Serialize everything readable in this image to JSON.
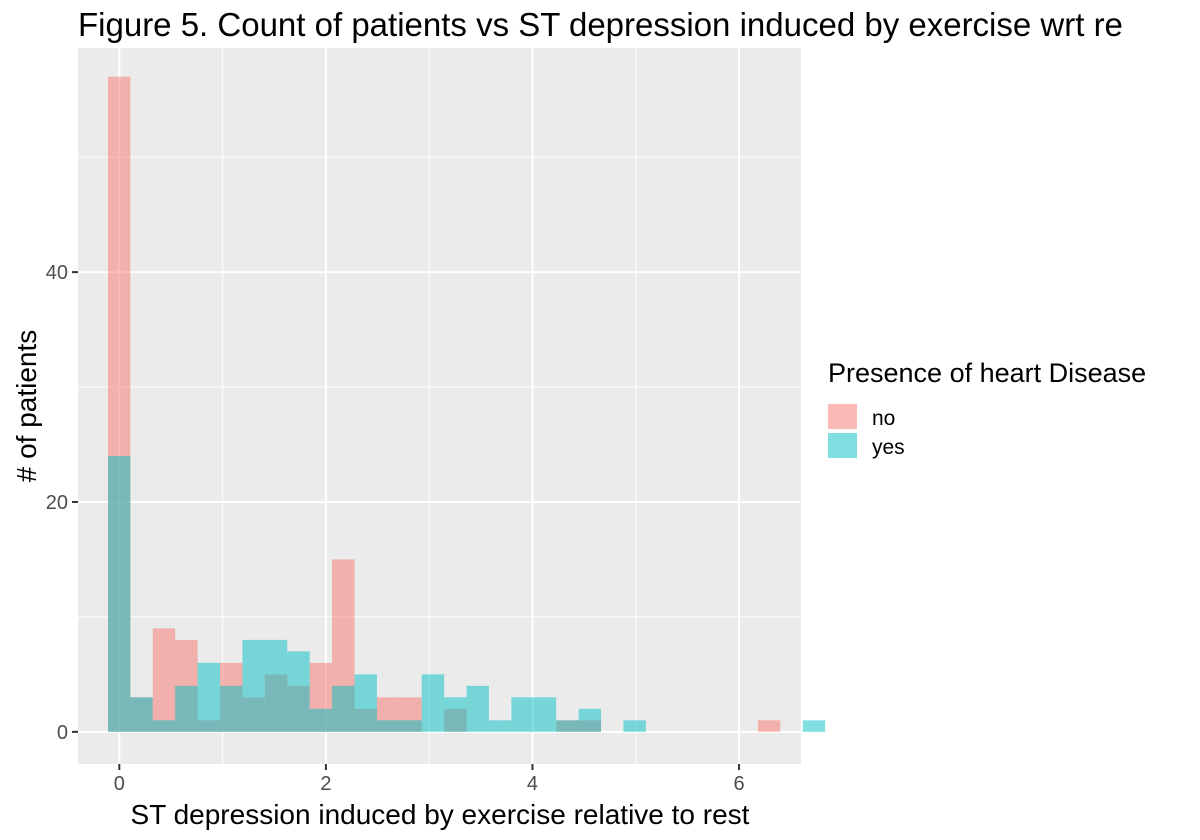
{
  "chart_data": {
    "type": "bar",
    "title": "Figure 5. Count of patients vs ST depression induced by exercise wrt re",
    "xlabel": "ST depression induced by exercise relative to rest",
    "ylabel": "# of patients",
    "xlim": [
      -0.4,
      6.6
    ],
    "ylim": [
      -2.8,
      59.5
    ],
    "xticks": [
      0,
      2,
      4,
      6
    ],
    "yticks": [
      0,
      20,
      40
    ],
    "grid": true,
    "panel_background": "#EBEBEB",
    "grid_color": "#FFFFFF",
    "bin_width": 0.217,
    "bin_start": -0.11,
    "legend": {
      "title": "Presence of heart Disease",
      "position": "right"
    },
    "series": [
      {
        "name": "no",
        "color": "#F8766D",
        "values": [
          57,
          3,
          9,
          8,
          1,
          6,
          3,
          5,
          4,
          6,
          15,
          2,
          3,
          3,
          0,
          2,
          0,
          0,
          0,
          0,
          1,
          1,
          0,
          0,
          0,
          0,
          0,
          0,
          0,
          1,
          0,
          0,
          0,
          0,
          0,
          0,
          0,
          0,
          0,
          0,
          0,
          0,
          0,
          0,
          0,
          0,
          0,
          0,
          0,
          0,
          0,
          0,
          0,
          0,
          0,
          0,
          0,
          0,
          0
        ]
      },
      {
        "name": "yes",
        "color": "#00BFC4",
        "values": [
          24,
          3,
          1,
          4,
          6,
          4,
          8,
          8,
          7,
          2,
          4,
          5,
          1,
          1,
          5,
          3,
          4,
          1,
          3,
          3,
          1,
          2,
          0,
          1,
          0,
          0,
          0,
          0,
          0,
          0,
          0,
          1,
          0,
          0,
          0,
          0,
          0,
          0,
          0,
          0,
          0,
          0,
          0,
          0,
          0,
          0,
          0,
          0,
          0,
          0,
          0,
          0,
          0,
          0,
          0,
          0,
          0,
          0,
          0
        ]
      }
    ]
  }
}
